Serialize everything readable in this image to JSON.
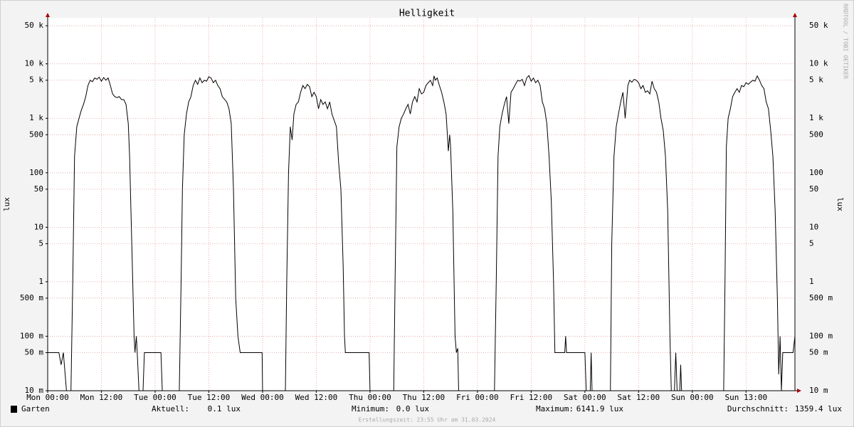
{
  "chart_data": {
    "type": "line",
    "title": "Helligkeit",
    "y_label": "lux",
    "watermark": "RRDTOOL / TOBI OETIKER",
    "footer": "Erstellungszeit: 23:55 Uhr am 31.03.2024",
    "log_scale": true,
    "grid": true,
    "xlim": [
      0,
      166.92
    ],
    "xticks": [
      {
        "value": 0,
        "label": "Mon 00:00"
      },
      {
        "value": 12,
        "label": "Mon 12:00"
      },
      {
        "value": 24,
        "label": "Tue 00:00"
      },
      {
        "value": 36,
        "label": "Tue 12:00"
      },
      {
        "value": 48,
        "label": "Wed 00:00"
      },
      {
        "value": 60,
        "label": "Wed 12:00"
      },
      {
        "value": 72,
        "label": "Thu 00:00"
      },
      {
        "value": 84,
        "label": "Thu 12:00"
      },
      {
        "value": 96,
        "label": "Fri 00:00"
      },
      {
        "value": 108,
        "label": "Fri 12:00"
      },
      {
        "value": 120,
        "label": "Sat 00:00"
      },
      {
        "value": 132,
        "label": "Sat 12:00"
      },
      {
        "value": 144,
        "label": "Sun 00:00"
      },
      {
        "value": 156,
        "label": "Sun 13:00"
      }
    ],
    "ylim": [
      0.01,
      70000
    ],
    "yticks": [
      {
        "value": 0.01,
        "label": "10 m"
      },
      {
        "value": 0.05,
        "label": "50 m"
      },
      {
        "value": 0.1,
        "label": "100 m"
      },
      {
        "value": 0.5,
        "label": "500 m"
      },
      1,
      5,
      10,
      50,
      100,
      500,
      {
        "value": 1000,
        "label": "1 k"
      },
      {
        "value": 5000,
        "label": "5 k"
      },
      {
        "value": 10000,
        "label": "10 k"
      },
      {
        "value": 50000,
        "label": "50 k"
      }
    ],
    "x": [
      0,
      2.5,
      3,
      3.5,
      4.2,
      5.2,
      5.6,
      6,
      6.5,
      7,
      7.5,
      8,
      8.5,
      9,
      9.5,
      10,
      10.5,
      11,
      11.5,
      12,
      12.5,
      13,
      13.5,
      14,
      14.5,
      15,
      15.5,
      16,
      16.5,
      17,
      17.5,
      18,
      18.3,
      18.6,
      19,
      19.3,
      19.5,
      19.8,
      20,
      20.4,
      21.3,
      21.6,
      25.3,
      25.6,
      29.4,
      29.8,
      30.1,
      30.5,
      31,
      31.5,
      32,
      32.5,
      33,
      33.5,
      34,
      34.5,
      35,
      35.5,
      36,
      36.5,
      37,
      37.5,
      38,
      38.5,
      39,
      40,
      40.5,
      41,
      41.5,
      42,
      42.5,
      43,
      47.9,
      48,
      53.1,
      53.4,
      53.8,
      54.2,
      54.6,
      55,
      55.5,
      56,
      56.5,
      57,
      57.5,
      58,
      58.5,
      59,
      59.5,
      60,
      60.5,
      61,
      61.5,
      62,
      62.5,
      63,
      63.5,
      64.5,
      65,
      65.5,
      66,
      66.3,
      66.5,
      71.8,
      72,
      77.3,
      77.6,
      78,
      78.5,
      79,
      79.5,
      80,
      80.5,
      81,
      81.5,
      82,
      82.5,
      83,
      83.5,
      84,
      84.5,
      85,
      85.5,
      86,
      86.3,
      86.6,
      87,
      87.5,
      88,
      88.5,
      89,
      89.5,
      89.8,
      90,
      90.5,
      91,
      91.3,
      91.6,
      91.8,
      99.8,
      100.2,
      100.6,
      101,
      101.5,
      102,
      102.5,
      103,
      103.5,
      104,
      104.5,
      105,
      105.5,
      106,
      106.5,
      107,
      107.5,
      108,
      108.5,
      109,
      109.5,
      110,
      110.5,
      111,
      111.5,
      112,
      112.5,
      113,
      113.3,
      115.5,
      115.7,
      115.9,
      120,
      120.3,
      121.2,
      121.4,
      121.6,
      125.7,
      126,
      126.5,
      127,
      127.5,
      128,
      128.5,
      129,
      129.3,
      129.6,
      130,
      130.5,
      131,
      131.5,
      132,
      132.5,
      133,
      133.5,
      134,
      134.5,
      135,
      135.5,
      136,
      136.5,
      137,
      137.5,
      138,
      138.5,
      139,
      139.3,
      140,
      140.3,
      140.6,
      141.2,
      141.4,
      141.6,
      151,
      151.3,
      151.6,
      152,
      152.5,
      153,
      153.5,
      154,
      154.5,
      155,
      155.5,
      156,
      156.5,
      157,
      157.5,
      158,
      158.5,
      159,
      159.5,
      160,
      160.5,
      161,
      161.5,
      162,
      162.5,
      163,
      163.3,
      163.6,
      163.9,
      164.2,
      166.5,
      166.92
    ],
    "series": [
      {
        "name": "Garten",
        "color": "#000000",
        "values": [
          0.05,
          0.05,
          0.03,
          0.05,
          0.01,
          0.01,
          1,
          200,
          700,
          1000,
          1400,
          1800,
          2500,
          4000,
          5000,
          4700,
          5500,
          5200,
          5700,
          4800,
          5600,
          5000,
          5500,
          4000,
          2800,
          2500,
          2400,
          2500,
          2200,
          2200,
          1800,
          800,
          200,
          20,
          1,
          0.1,
          0.05,
          0.1,
          0.05,
          0.01,
          0.01,
          0.05,
          0.05,
          0.01,
          0.01,
          1,
          50,
          500,
          1200,
          2000,
          2500,
          4000,
          5000,
          4200,
          5500,
          4500,
          5000,
          4800,
          5800,
          5500,
          4500,
          5000,
          4000,
          3500,
          2500,
          2000,
          1500,
          800,
          50,
          0.5,
          0.1,
          0.05,
          0.05,
          0.01,
          0.01,
          1,
          100,
          700,
          400,
          1200,
          1800,
          2000,
          3000,
          4000,
          3500,
          4200,
          3800,
          2500,
          3000,
          2500,
          1500,
          2200,
          1800,
          2000,
          1500,
          2000,
          1200,
          700,
          150,
          50,
          2,
          0.1,
          0.05,
          0.05,
          0.01,
          0.01,
          1,
          300,
          700,
          1000,
          1200,
          1500,
          1800,
          1200,
          2000,
          2500,
          2000,
          3500,
          2800,
          3000,
          4000,
          4500,
          5000,
          4000,
          6000,
          5000,
          5500,
          4000,
          3000,
          2000,
          1200,
          250,
          500,
          300,
          20,
          0.1,
          0.05,
          0.06,
          0.01,
          0.01,
          1,
          200,
          700,
          1200,
          1800,
          2500,
          800,
          3000,
          3500,
          4200,
          5000,
          4800,
          5200,
          4000,
          5500,
          6100,
          4800,
          5500,
          4500,
          5000,
          4000,
          2000,
          1500,
          800,
          200,
          30,
          1,
          0.05,
          0.05,
          0.1,
          0.05,
          0.05,
          0.01,
          0.01,
          0.05,
          0.01,
          0.01,
          5,
          200,
          700,
          1200,
          2000,
          3000,
          1000,
          2000,
          4000,
          5000,
          4600,
          5200,
          5000,
          4500,
          3500,
          4000,
          3000,
          3200,
          2800,
          4800,
          3500,
          3000,
          2000,
          1000,
          600,
          200,
          20,
          0.1,
          0.01,
          0.01,
          0.05,
          0.01,
          0.01,
          0.03,
          0.01,
          0.01,
          1,
          300,
          1000,
          1500,
          2500,
          3000,
          3500,
          3000,
          4000,
          3800,
          4500,
          4200,
          4600,
          5000,
          4800,
          6000,
          5000,
          4000,
          3500,
          2000,
          1500,
          600,
          200,
          20,
          0.5,
          0.02,
          0.1,
          0.01,
          0.05,
          0.05,
          0.1
        ]
      }
    ],
    "stats": [
      {
        "label": "Aktuell:",
        "value": "0.1 lux"
      },
      {
        "label": "Minimum:",
        "value": "0.0 lux"
      },
      {
        "label": "Maximum:",
        "value": "6141.9 lux"
      },
      {
        "label": "Durchschnitt:",
        "value": "1359.4 lux"
      }
    ]
  }
}
